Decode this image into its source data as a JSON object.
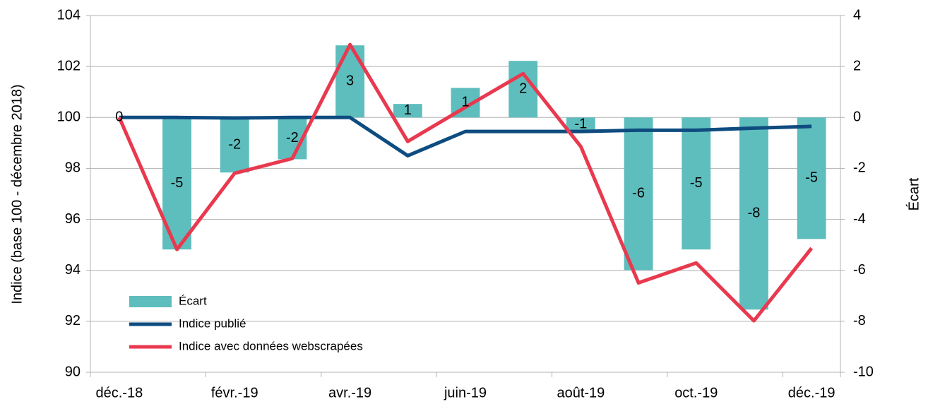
{
  "chart_data": {
    "type": "combo",
    "categories": [
      "déc.-18",
      null,
      "févr.-19",
      null,
      "avr.-19",
      null,
      "juin-19",
      null,
      "août-19",
      null,
      "oct.-19",
      null,
      "déc.-19"
    ],
    "y_label": "Indice (base 100 - décembre 2018)",
    "y2_label": "Écart",
    "ylim": [
      90,
      104
    ],
    "yticks": [
      90,
      92,
      94,
      96,
      98,
      100,
      102,
      104
    ],
    "y2lim": [
      -10,
      4
    ],
    "y2ticks": [
      -10,
      -8,
      -6,
      -4,
      -2,
      0,
      2,
      4
    ],
    "grid": true,
    "legend": "lower left",
    "series": [
      {
        "name": "Écart",
        "type": "bar",
        "axis": "y2",
        "color": "#5ebdbd",
        "values": [
          0,
          -5.18,
          -2.16,
          -1.64,
          2.83,
          0.53,
          1.16,
          2.22,
          -0.55,
          -5.99,
          -5.18,
          -7.54,
          -4.77
        ],
        "value_labels": [
          "0",
          "-5",
          "-2",
          "-2",
          "3",
          "1",
          "1",
          "2",
          "-1",
          "-6",
          "-5",
          "-8",
          "-5"
        ]
      },
      {
        "name": "Indice publié",
        "type": "line",
        "color": "#0e4c80",
        "values": [
          100,
          100,
          99.98,
          100,
          100,
          98.5,
          99.45,
          99.45,
          99.45,
          99.5,
          99.5,
          99.58,
          99.65
        ]
      },
      {
        "name": "Indice avec données webscrapées",
        "type": "line",
        "color": "#e8394f",
        "values": [
          100,
          94.82,
          97.81,
          98.39,
          102.86,
          99.06,
          100.4,
          101.72,
          98.86,
          93.51,
          94.29,
          92.02,
          94.87
        ]
      }
    ]
  }
}
